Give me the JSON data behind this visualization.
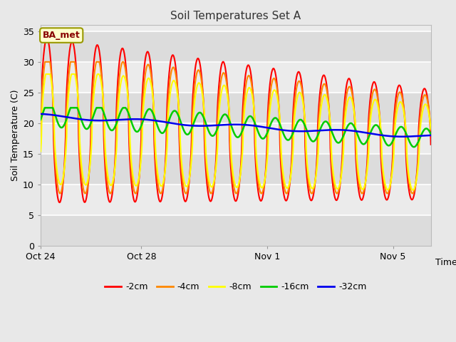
{
  "title": "Soil Temperatures Set A",
  "xlabel": "Time",
  "ylabel": "Soil Temperature (C)",
  "ylim": [
    0,
    36
  ],
  "yticks": [
    0,
    5,
    10,
    15,
    20,
    25,
    30,
    35
  ],
  "annotation_text": "BA_met",
  "annotation_box_color": "#FFFFCC",
  "annotation_border_color": "#999900",
  "annotation_text_color": "#880000",
  "line_colors": {
    "-2cm": "#FF0000",
    "-4cm": "#FF8800",
    "-8cm": "#FFFF00",
    "-16cm": "#00CC00",
    "-32cm": "#0000EE"
  },
  "background_color": "#E8E8E8",
  "plot_bg_color": "#F0F0F0",
  "band_colors": [
    "#DCDCDC",
    "#F0F0F0"
  ],
  "x_tick_labels": [
    "Oct 24",
    "Oct 28",
    "Nov 1",
    "Nov 5"
  ],
  "x_tick_positions": [
    0,
    4,
    9,
    14
  ],
  "n_days": 15.5,
  "figsize": [
    6.4,
    4.8
  ],
  "dpi": 100
}
